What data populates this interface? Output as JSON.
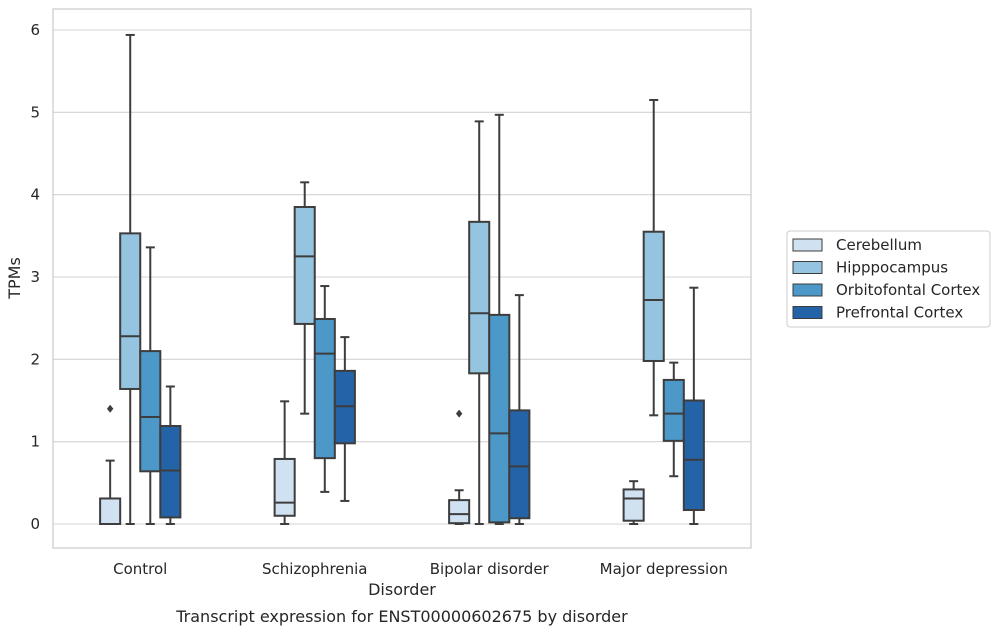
{
  "chart_data": {
    "type": "box",
    "xlabel": "Disorder",
    "ylabel": "TPMs",
    "caption": "Transcript expression for ENST00000602675 by disorder",
    "ylim": [
      -0.3,
      6.25
    ],
    "yticks": [
      0,
      1,
      2,
      3,
      4,
      5,
      6
    ],
    "ytick_labels": [
      "0",
      "1",
      "2",
      "3",
      "4",
      "5",
      "6"
    ],
    "grid": "horizontal",
    "legend_position": "center-right",
    "categories": [
      "Control",
      "Schizophrenia",
      "Bipolar disorder",
      "Major depression"
    ],
    "series": [
      {
        "name": "Cerebellum",
        "color": "#d0e1f2",
        "boxes": [
          {
            "whislo": 0,
            "q1": 0,
            "med": 0,
            "q3": 0.31,
            "whishi": 0.77,
            "fliers": [
              1.4
            ]
          },
          {
            "whislo": 0,
            "q1": 0.1,
            "med": 0.26,
            "q3": 0.79,
            "whishi": 1.49,
            "fliers": []
          },
          {
            "whislo": 0,
            "q1": 0.01,
            "med": 0.12,
            "q3": 0.29,
            "whishi": 0.41,
            "fliers": [
              1.34
            ]
          },
          {
            "whislo": 0,
            "q1": 0.04,
            "med": 0.31,
            "q3": 0.42,
            "whishi": 0.52,
            "fliers": []
          }
        ]
      },
      {
        "name": "Hipppocampus",
        "color": "#94c4df",
        "boxes": [
          {
            "whislo": 0,
            "q1": 1.64,
            "med": 2.28,
            "q3": 3.53,
            "whishi": 5.94,
            "fliers": []
          },
          {
            "whislo": 1.34,
            "q1": 2.43,
            "med": 3.25,
            "q3": 3.85,
            "whishi": 4.15,
            "fliers": []
          },
          {
            "whislo": 0,
            "q1": 1.83,
            "med": 2.56,
            "q3": 3.67,
            "whishi": 4.89,
            "fliers": []
          },
          {
            "whislo": 1.32,
            "q1": 1.98,
            "med": 2.72,
            "q3": 3.55,
            "whishi": 5.15,
            "fliers": []
          }
        ]
      },
      {
        "name": "Orbitofontal Cortex",
        "color": "#4b98c9",
        "boxes": [
          {
            "whislo": 0,
            "q1": 0.64,
            "med": 1.3,
            "q3": 2.1,
            "whishi": 3.36,
            "fliers": []
          },
          {
            "whislo": 0.39,
            "q1": 0.8,
            "med": 2.07,
            "q3": 2.49,
            "whishi": 2.89,
            "fliers": []
          },
          {
            "whislo": 0,
            "q1": 0.02,
            "med": 1.1,
            "q3": 2.54,
            "whishi": 4.97,
            "fliers": []
          },
          {
            "whislo": 0.58,
            "q1": 1.01,
            "med": 1.34,
            "q3": 1.75,
            "whishi": 1.96,
            "fliers": []
          }
        ]
      },
      {
        "name": "Prefrontal Cortex",
        "color": "#2563a8",
        "boxes": [
          {
            "whislo": 0,
            "q1": 0.08,
            "med": 0.65,
            "q3": 1.19,
            "whishi": 1.67,
            "fliers": []
          },
          {
            "whislo": 0.28,
            "q1": 0.98,
            "med": 1.43,
            "q3": 1.86,
            "whishi": 2.27,
            "fliers": []
          },
          {
            "whislo": 0,
            "q1": 0.07,
            "med": 0.7,
            "q3": 1.38,
            "whishi": 2.78,
            "fliers": []
          },
          {
            "whislo": 0,
            "q1": 0.17,
            "med": 0.78,
            "q3": 1.5,
            "whishi": 2.87,
            "fliers": []
          }
        ]
      }
    ]
  }
}
